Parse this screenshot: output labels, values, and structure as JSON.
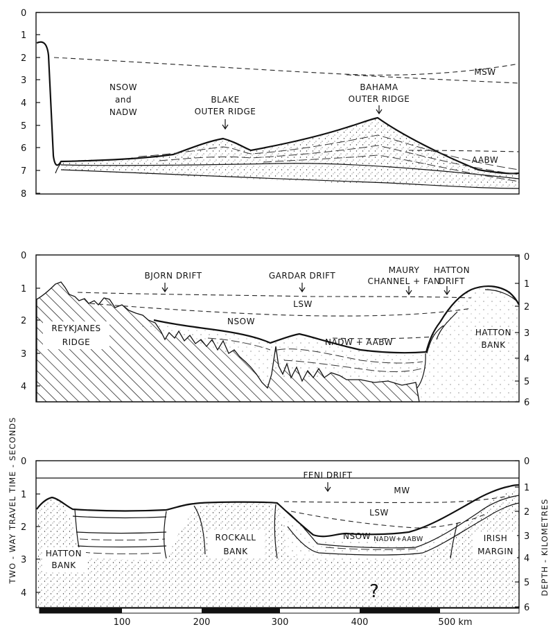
{
  "panel_a": {
    "y_ticks": [
      "0",
      "1",
      "2",
      "3",
      "4",
      "5",
      "6",
      "7",
      "8"
    ],
    "labels": {
      "nsow": "NSOW",
      "and": "and",
      "nadw": "NADW",
      "blake_1": "BLAKE",
      "blake_2": "OUTER RIDGE",
      "bahama_1": "BAHAMA",
      "bahama_2": "OUTER RIDGE",
      "msw": "MSW",
      "aabw": "AABW"
    }
  },
  "panel_b": {
    "y_ticks_left": [
      "0",
      "1",
      "2",
      "3",
      "4"
    ],
    "y_ticks_right": [
      "0",
      "1",
      "2",
      "3",
      "4",
      "5",
      "6"
    ],
    "labels": {
      "bjorn": "BJORN DRIFT",
      "gardar": "GARDAR DRIFT",
      "maury_1": "MAURY",
      "maury_2": "CHANNEL + FAN",
      "hatton_drift_1": "HATTON",
      "hatton_drift_2": "DRIFT",
      "lsw": "LSW",
      "nsow": "NSOW",
      "nadw_aabw": "NADW + AABW",
      "reykjanes_1": "REYKJANES",
      "reykjanes_2": "RIDGE",
      "hatton_bank_1": "HATTON",
      "hatton_bank_2": "BANK"
    }
  },
  "panel_c": {
    "y_ticks_left": [
      "0",
      "1",
      "2",
      "3",
      "4"
    ],
    "y_ticks_right": [
      "0",
      "1",
      "2",
      "3",
      "4",
      "5",
      "6"
    ],
    "labels": {
      "feni": "FENI DRIFT",
      "mw": "MW",
      "lsw": "LSW",
      "nsow": "NSOW",
      "nadw_aabw": "NADW+AABW",
      "rockall_1": "ROCKALL",
      "rockall_2": "BANK",
      "hatton_1": "HATTON",
      "hatton_2": "BANK",
      "irish_1": "IRISH",
      "irish_2": "MARGIN",
      "question": "?"
    }
  },
  "x_axis": {
    "ticks": [
      "100",
      "200",
      "300",
      "400",
      "500 km"
    ]
  },
  "left_axis_title": "TWO - WAY TRAVEL TIME - SECONDS",
  "right_axis_title": "DEPTH - KILOMETRES"
}
